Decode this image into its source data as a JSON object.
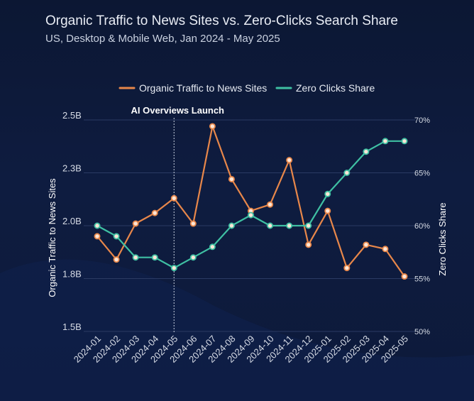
{
  "chart_data": {
    "type": "line",
    "title": "Organic Traffic to News Sites vs. Zero-Clicks Search Share",
    "subtitle": "US, Desktop & Mobile Web, Jan 2024 - May 2025",
    "categories": [
      "2024-01",
      "2024-02",
      "2024-03",
      "2024-04",
      "2024-05",
      "2024-06",
      "2024-07",
      "2024-08",
      "2024-09",
      "2024-10",
      "2024-11",
      "2024-12",
      "2025-01",
      "2025-02",
      "2025-03",
      "2025-04",
      "2025-05"
    ],
    "series": [
      {
        "name": "Organic Traffic to News Sites",
        "axis": "left",
        "color": "#e8874a",
        "values": [
          1.95,
          1.84,
          2.01,
          2.06,
          2.13,
          2.01,
          2.47,
          2.22,
          2.07,
          2.1,
          2.31,
          1.91,
          2.07,
          1.8,
          1.91,
          1.89,
          1.76
        ]
      },
      {
        "name": "Zero Clicks Share",
        "axis": "right",
        "color": "#3fc0a3",
        "values": [
          60,
          59,
          57,
          57,
          56,
          57,
          58,
          60,
          61,
          60,
          60,
          60,
          63,
          65,
          67,
          68,
          68
        ]
      }
    ],
    "left_axis": {
      "label": "Organic Traffic to News Sites",
      "ylim": [
        1.5,
        2.5
      ],
      "ticks": [
        1.5,
        1.75,
        2.0,
        2.25,
        2.5
      ],
      "tick_labels": [
        "1.5B",
        "1.8B",
        "2.0B",
        "2.3B",
        "2.5B"
      ]
    },
    "right_axis": {
      "label": "Zero Clicks Share",
      "ylim": [
        50,
        70
      ],
      "ticks": [
        50,
        55,
        60,
        65,
        70
      ],
      "tick_labels": [
        "50%",
        "55%",
        "60%",
        "65%",
        "70%"
      ]
    },
    "annotation": {
      "text": "AI Overviews Launch",
      "at_category": "2024-05"
    },
    "legend": "top-center",
    "grid": true
  }
}
